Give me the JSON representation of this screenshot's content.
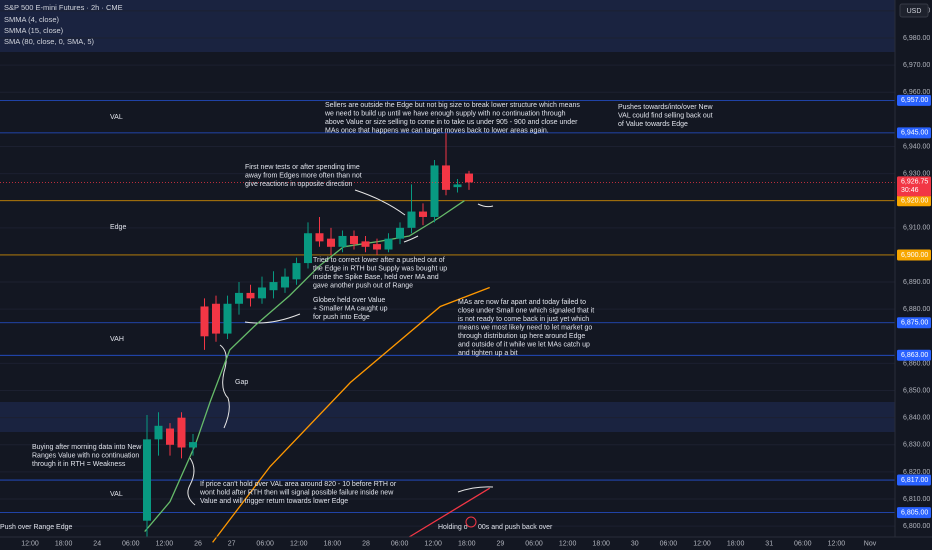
{
  "chart_data": {
    "type": "candlestick",
    "title": "S&P 500 E-mini Futures · 2h · CME",
    "currency": "USD",
    "legend": [
      "SMMA (4, close)",
      "SMMA (15, close)",
      "SMA (80, close, 0, SMA, 5)"
    ],
    "ylim": [
      6796,
      6994
    ],
    "yticks": [
      {
        "value": 6800,
        "label": "6,800.00"
      },
      {
        "value": 6810,
        "label": "6,810.00"
      },
      {
        "value": 6820,
        "label": "6,820.00"
      },
      {
        "value": 6830,
        "label": "6,830.00"
      },
      {
        "value": 6840,
        "label": "6,840.00"
      },
      {
        "value": 6850,
        "label": "6,850.00"
      },
      {
        "value": 6860,
        "label": "6,860.00"
      },
      {
        "value": 6880,
        "label": "6,880.00"
      },
      {
        "value": 6890,
        "label": "6,890.00"
      },
      {
        "value": 6910,
        "label": "6,910.00"
      },
      {
        "value": 6930,
        "label": "6,930.00"
      },
      {
        "value": 6940,
        "label": "6,940.00"
      },
      {
        "value": 6960,
        "label": "6,960.00"
      },
      {
        "value": 6970,
        "label": "6,970.00"
      },
      {
        "value": 6980,
        "label": "6,980.00"
      },
      {
        "value": 6990,
        "label": "6,990.00"
      }
    ],
    "grid": true,
    "x_labels": [
      "12:00",
      "18:00",
      "24",
      "06:00",
      "12:00",
      "26",
      "27",
      "06:00",
      "12:00",
      "18:00",
      "28",
      "06:00",
      "12:00",
      "18:00",
      "29",
      "06:00",
      "12:00",
      "18:00",
      "30",
      "06:00",
      "12:00",
      "18:00",
      "31",
      "06:00",
      "12:00",
      "Nov"
    ],
    "up_color": "#089981",
    "down_color": "#f23645",
    "candles": {
      "open": [
        6802,
        6832,
        6836,
        6840,
        6829,
        6881,
        6882,
        6871,
        6882,
        6886,
        6884,
        6887,
        6888,
        6891,
        6897,
        6908,
        6906,
        6903,
        6907,
        6905,
        6904,
        6902,
        6906,
        6910,
        6916,
        6914,
        6933,
        6925,
        6930
      ],
      "high": [
        6841,
        6842,
        6838,
        6842,
        6834,
        6884,
        6885,
        6885,
        6890,
        6889,
        6892,
        6894,
        6895,
        6899,
        6912,
        6914,
        6910,
        6909,
        6909,
        6907,
        6906,
        6908,
        6912,
        6926,
        6919,
        6935,
        6945,
        6928,
        6931
      ],
      "low": [
        6796,
        6826,
        6826,
        6825,
        6826,
        6865,
        6868,
        6869,
        6878,
        6881,
        6882,
        6884,
        6886,
        6889,
        6895,
        6903,
        6900,
        6901,
        6902,
        6901,
        6900,
        6901,
        6904,
        6908,
        6911,
        6912,
        6922,
        6923,
        6924
      ],
      "close": [
        6832,
        6837,
        6830,
        6829,
        6831,
        6870,
        6871,
        6882,
        6886,
        6884,
        6888,
        6890,
        6892,
        6897,
        6908,
        6905,
        6903,
        6907,
        6904,
        6903,
        6902,
        6906,
        6910,
        6916,
        6914,
        6933,
        6924,
        6926,
        6926.75
      ]
    },
    "lines": [
      {
        "color": "#66bb6a",
        "x": [
          -0.2,
          2,
          4.2,
          5.5,
          7.2,
          9.4,
          12.4,
          15,
          17.1,
          20.2,
          22.8,
          25.5,
          27.6
        ],
        "values": [
          6798,
          6809,
          6830,
          6846,
          6865,
          6874,
          6885,
          6896,
          6903,
          6905,
          6907,
          6914,
          6920
        ]
      },
      {
        "color": "#ff9800",
        "x": [
          5.7,
          10.7,
          17.7,
          25.5,
          29.8
        ],
        "values": [
          6794,
          6822,
          6853,
          6881,
          6888
        ]
      },
      {
        "color": "#f23645",
        "x": [
          22.8,
          29.8
        ],
        "values": [
          6796,
          6814
        ]
      }
    ],
    "levels": [
      {
        "value": 6957,
        "label": "6,957.00",
        "color": "#2962ff"
      },
      {
        "value": 6945,
        "label": "6,945.00",
        "color": "#2962ff"
      },
      {
        "value": 6920,
        "label": "6,920.00",
        "color": "#f7a600"
      },
      {
        "value": 6900,
        "label": "6,900.00",
        "color": "#f7a600"
      },
      {
        "value": 6875,
        "label": "6,875.00",
        "color": "#2962ff"
      },
      {
        "value": 6863,
        "label": "6,863.00",
        "color": "#2962ff"
      },
      {
        "value": 6817,
        "label": "6,817.00",
        "color": "#2962ff"
      },
      {
        "value": 6805,
        "label": "6,805.00",
        "color": "#2962ff"
      }
    ],
    "last_price": {
      "value": 6926.75,
      "label": "6,926.75",
      "countdown": "30:46",
      "color": "#f23645"
    },
    "zones": [
      "VAL",
      "Edge",
      "VAH",
      "VAL"
    ],
    "annotations": [
      [
        "Sellers are outside the Edge but not big size to break lower structure which means",
        "we need to build up until we have enough supply with no continuation through",
        "above Value or size selling to come in to take us under 905 - 900 and close under",
        "MAs once that happens we can target moves back to lower areas again."
      ],
      [
        "Pushes towards/into/over New",
        "VAL could find selling back out",
        "of Value towards Edge"
      ],
      [
        "First new tests or after spending time",
        "away from Edges more often than not",
        "give reactions in opposite direction"
      ],
      [
        "Tried to correct lower after a pushed out of",
        "the Edge in RTH but Supply was bought up",
        "inside the Spike Base, held over MA and",
        "gave another push out of Range"
      ],
      [
        "Globex held over Value",
        "+ Smaller MA caught up",
        "for push into Edge"
      ],
      [
        "MAs are now far apart and today failed to",
        "close under Small one which signaled that it",
        "is not ready to come back in just yet which",
        "means we most likely need to let market go",
        "through distribution up here around Edge",
        "and outside of it while we let MAs catch up",
        "and tighten up a bit"
      ],
      [
        "Gap"
      ],
      [
        "Buying after morning data into New",
        "Ranges Value with no continuation",
        "through it in RTH = Weakness"
      ],
      [
        "If price can't hold over VAL area around 820 - 10 before RTH or",
        "wont hold after RTH then will signal possible failure inside new",
        "Value and will trigger return towards lower Edge"
      ],
      [
        "Push over Range Edge"
      ],
      [
        "Holding o"
      ],
      [
        "00s and push back over"
      ]
    ]
  }
}
